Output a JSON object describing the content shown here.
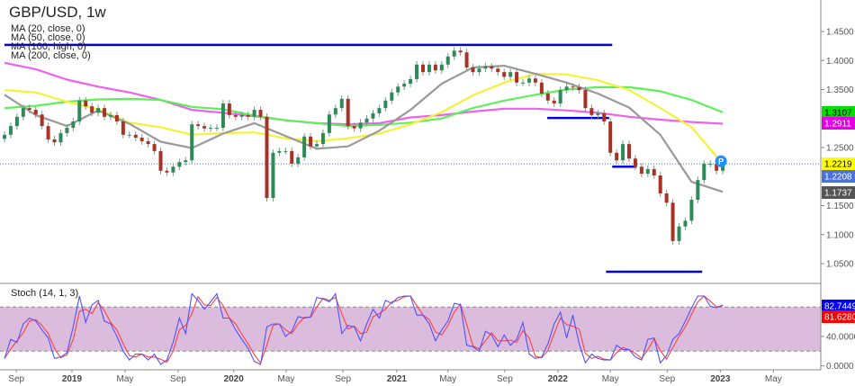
{
  "header": {
    "title": "GBP/USD, 1w"
  },
  "indicators": [
    {
      "label": "MA (20, close, 0)",
      "color": "#999999"
    },
    {
      "label": "MA (50, close, 0)",
      "color": "#f5f03a"
    },
    {
      "label": "MA (100, high, 0)",
      "color": "#5ef05a"
    },
    {
      "label": "MA (200, close, 0)",
      "color": "#f060f0"
    }
  ],
  "stoch_label": "Stoch (14, 1, 3)",
  "chart_data": [
    {
      "type": "candlestick",
      "title": "GBP/USD, 1w",
      "x_ticks": [
        {
          "label": "Sep",
          "bar": 1.9,
          "bold": false
        },
        {
          "label": "2019",
          "bar": 10.8,
          "bold": true
        },
        {
          "label": "May",
          "bar": 19.3,
          "bold": false
        },
        {
          "label": "Sep",
          "bar": 27.8,
          "bold": false
        },
        {
          "label": "2020",
          "bar": 36.7,
          "bold": true
        },
        {
          "label": "May",
          "bar": 45.1,
          "bold": false
        },
        {
          "label": "Sep",
          "bar": 54.2,
          "bold": false
        },
        {
          "label": "2021",
          "bar": 62.8,
          "bold": true
        },
        {
          "label": "May",
          "bar": 71.0,
          "bold": false
        },
        {
          "label": "Sep",
          "bar": 80.1,
          "bold": false
        },
        {
          "label": "2022",
          "bar": 88.6,
          "bold": true
        },
        {
          "label": "May",
          "bar": 97.0,
          "bold": false
        },
        {
          "label": "Sep",
          "bar": 106.1,
          "bold": false
        },
        {
          "label": "2023",
          "bar": 114.6,
          "bold": true
        },
        {
          "label": "May",
          "bar": 123.1,
          "bold": false
        }
      ],
      "y_ticks": [
        "1.4500",
        "1.4000",
        "1.3500",
        "1.2500",
        "1.1500",
        "1.1000",
        "1.0500"
      ],
      "ylim": [
        1.03,
        1.47
      ],
      "first_open": 1.265,
      "close": [
        1.272,
        1.287,
        1.303,
        1.318,
        1.315,
        1.307,
        1.287,
        1.264,
        1.259,
        1.275,
        1.284,
        1.295,
        1.331,
        1.321,
        1.31,
        1.318,
        1.303,
        1.306,
        1.295,
        1.272,
        1.272,
        1.267,
        1.261,
        1.256,
        1.244,
        1.21,
        1.207,
        1.217,
        1.225,
        1.228,
        1.29,
        1.287,
        1.283,
        1.284,
        1.284,
        1.326,
        1.306,
        1.303,
        1.306,
        1.303,
        1.315,
        1.303,
        1.163,
        1.241,
        1.244,
        1.244,
        1.222,
        1.233,
        1.269,
        1.252,
        1.256,
        1.275,
        1.307,
        1.318,
        1.334,
        1.287,
        1.283,
        1.293,
        1.3,
        1.309,
        1.318,
        1.331,
        1.345,
        1.355,
        1.36,
        1.368,
        1.393,
        1.38,
        1.393,
        1.383,
        1.393,
        1.407,
        1.417,
        1.414,
        1.388,
        1.38,
        1.386,
        1.39,
        1.386,
        1.38,
        1.372,
        1.38,
        1.362,
        1.362,
        1.369,
        1.362,
        1.343,
        1.331,
        1.326,
        1.349,
        1.355,
        1.354,
        1.349,
        1.318,
        1.306,
        1.309,
        1.295,
        1.241,
        1.228,
        1.256,
        1.231,
        1.217,
        1.205,
        1.213,
        1.202,
        1.171,
        1.155,
        1.089,
        1.114,
        1.124,
        1.16,
        1.194,
        1.222,
        1.222,
        1.21,
        1.2219
      ],
      "moving_averages": {
        "sample_bars": [
          0,
          5,
          10,
          15,
          20,
          25,
          30,
          35,
          40,
          45,
          50,
          55,
          60,
          65,
          70,
          75,
          80,
          85,
          90,
          95,
          100,
          105,
          110,
          115
        ],
        "ma20": [
          1.341,
          1.306,
          1.287,
          1.314,
          1.291,
          1.26,
          1.249,
          1.274,
          1.292,
          1.27,
          1.248,
          1.252,
          1.279,
          1.315,
          1.36,
          1.388,
          1.391,
          1.377,
          1.362,
          1.343,
          1.319,
          1.272,
          1.191,
          1.1737
        ],
        "ma50": [
          1.349,
          1.345,
          1.329,
          1.316,
          1.293,
          1.285,
          1.272,
          1.275,
          1.276,
          1.266,
          1.261,
          1.266,
          1.274,
          1.29,
          1.311,
          1.34,
          1.362,
          1.377,
          1.376,
          1.366,
          1.349,
          1.318,
          1.285,
          1.2219
        ],
        "ma100": [
          1.318,
          1.322,
          1.329,
          1.333,
          1.334,
          1.332,
          1.32,
          1.316,
          1.305,
          1.297,
          1.292,
          1.287,
          1.289,
          1.293,
          1.3,
          1.318,
          1.331,
          1.341,
          1.35,
          1.354,
          1.354,
          1.347,
          1.332,
          1.3107
        ],
        "ma200": [
          1.396,
          1.385,
          1.367,
          1.355,
          1.345,
          1.332,
          1.315,
          1.31,
          1.304,
          1.297,
          1.292,
          1.29,
          1.292,
          1.302,
          1.306,
          1.312,
          1.317,
          1.317,
          1.314,
          1.31,
          1.303,
          1.298,
          1.294,
          1.2911
        ]
      },
      "drawn_levels": [
        {
          "price": 1.427,
          "from_bar": 0,
          "to_bar": 97.3
        },
        {
          "price": 1.301,
          "from_bar": 86.9,
          "to_bar": 96.8
        },
        {
          "price": 1.217,
          "from_bar": 97.3,
          "to_bar": 101.2
        },
        {
          "price": 1.036,
          "from_bar": 96.3,
          "to_bar": 111.7
        }
      ],
      "current_price_line": 1.2219,
      "price_marker": "P",
      "price_labels": [
        {
          "text": "1.3107",
          "value": 1.3107,
          "bg": "#00e000",
          "fg": "#000000"
        },
        {
          "text": "1.2911",
          "value": 1.2911,
          "bg": "#e600e6",
          "fg": "#ffffff"
        },
        {
          "text": "1.2219",
          "value": 1.2219,
          "bg": "#ffff00",
          "fg": "#000000"
        },
        {
          "text": "1.2208",
          "value": 1.2208,
          "bg": "#4a72d9",
          "fg": "#ffffff"
        },
        {
          "text": "1.1737",
          "value": 1.1737,
          "bg": "#555555",
          "fg": "#ffffff"
        }
      ],
      "colors": {
        "up": "#2e8b57",
        "down": "#a93226",
        "levels": "#0000e0",
        "price_line": "#3a6ee8"
      }
    },
    {
      "type": "line",
      "title": "Stoch (14, 1, 3)",
      "ylim": [
        0,
        100
      ],
      "y_ticks": [
        "40.0000",
        "0.0000"
      ],
      "bands": [
        20,
        80
      ],
      "band_color": "#dcbcdc",
      "k": [
        10,
        36,
        32,
        57,
        65,
        61,
        49,
        38,
        10,
        12,
        18,
        53,
        95,
        59,
        83,
        89,
        61,
        57,
        40,
        20,
        8,
        16,
        16,
        8,
        16,
        2,
        8,
        32,
        65,
        44,
        98,
        89,
        77,
        87,
        98,
        65,
        65,
        49,
        36,
        24,
        6,
        2,
        53,
        57,
        57,
        40,
        47,
        67,
        65,
        67,
        93,
        91,
        87,
        98,
        44,
        55,
        53,
        34,
        57,
        77,
        65,
        89,
        85,
        93,
        95,
        95,
        69,
        69,
        57,
        34,
        49,
        61,
        85,
        83,
        28,
        26,
        20,
        47,
        42,
        26,
        42,
        28,
        36,
        59,
        16,
        10,
        12,
        30,
        57,
        73,
        38,
        69,
        30,
        4,
        16,
        10,
        8,
        8,
        28,
        22,
        22,
        12,
        8,
        36,
        38,
        4,
        14,
        36,
        44,
        61,
        79,
        95,
        95,
        81,
        79,
        82.7449
      ],
      "d": [
        10,
        23,
        34,
        45,
        61,
        63,
        55,
        44,
        24,
        11,
        15,
        36,
        74,
        77,
        71,
        86,
        75,
        59,
        49,
        30,
        14,
        12,
        16,
        12,
        12,
        9,
        5,
        20,
        49,
        55,
        71,
        94,
        83,
        82,
        93,
        82,
        65,
        57,
        43,
        30,
        15,
        4,
        28,
        55,
        57,
        49,
        44,
        57,
        66,
        66,
        80,
        92,
        89,
        93,
        71,
        50,
        54,
        44,
        46,
        67,
        71,
        77,
        87,
        89,
        94,
        95,
        82,
        69,
        63,
        46,
        42,
        55,
        73,
        84,
        56,
        27,
        23,
        34,
        45,
        34,
        34,
        35,
        32,
        48,
        38,
        13,
        11,
        21,
        44,
        65,
        56,
        54,
        50,
        17,
        10,
        13,
        9,
        8,
        18,
        25,
        22,
        17,
        10,
        22,
        37,
        21,
        9,
        25,
        40,
        53,
        70,
        87,
        95,
        88,
        80,
        81.628
      ],
      "k_color": "#5050ff",
      "d_color": "#ff4040",
      "value_labels": [
        {
          "text": "82.7449",
          "value": 82.7449,
          "bg": "#0000ff",
          "fg": "#ffffff"
        },
        {
          "text": "81.6280",
          "value": 81.628,
          "bg": "#ff0000",
          "fg": "#ffffff"
        }
      ]
    }
  ]
}
